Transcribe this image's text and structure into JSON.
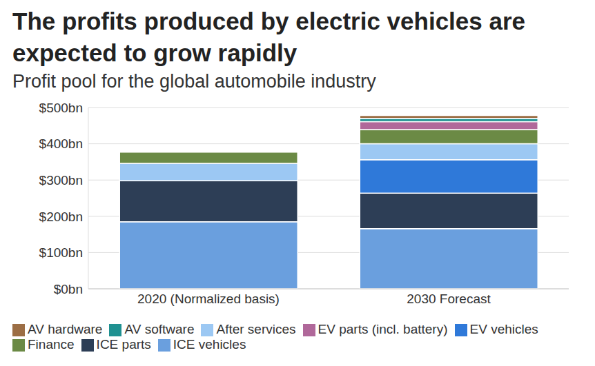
{
  "chart_data": {
    "type": "bar",
    "title": "The profits produced by electric vehicles are expected to grow rapidly",
    "subtitle": "Profit pool for the global automobile industry",
    "categories": [
      "2020 (Normalized basis)",
      "2030 Forecast"
    ],
    "series": [
      {
        "name": "ICE vehicles",
        "color": "#6a9fde",
        "values": [
          185,
          166
        ]
      },
      {
        "name": "ICE parts",
        "color": "#2d3e56",
        "values": [
          113,
          98
        ]
      },
      {
        "name": "EV vehicles",
        "color": "#2f79d9",
        "values": [
          0,
          92
        ]
      },
      {
        "name": "After services",
        "color": "#9cc8f3",
        "values": [
          48,
          44
        ]
      },
      {
        "name": "Finance",
        "color": "#6b8a45",
        "values": [
          31,
          39
        ]
      },
      {
        "name": "EV parts (incl. battery)",
        "color": "#b0689a",
        "values": [
          0,
          22
        ]
      },
      {
        "name": "AV software",
        "color": "#1f9191",
        "values": [
          0,
          9
        ]
      },
      {
        "name": "AV hardware",
        "color": "#9c6e45",
        "values": [
          0,
          8
        ]
      }
    ],
    "ylim": [
      0,
      500
    ],
    "yticks": [
      {
        "value": 0,
        "label": "$0bn"
      },
      {
        "value": 100,
        "label": "$100bn"
      },
      {
        "value": 200,
        "label": "$200bn"
      },
      {
        "value": 300,
        "label": "$300bn"
      },
      {
        "value": 400,
        "label": "$400bn"
      },
      {
        "value": 500,
        "label": "$500bn"
      }
    ],
    "stacked": true,
    "grid": true,
    "legend": "bottom-left"
  }
}
